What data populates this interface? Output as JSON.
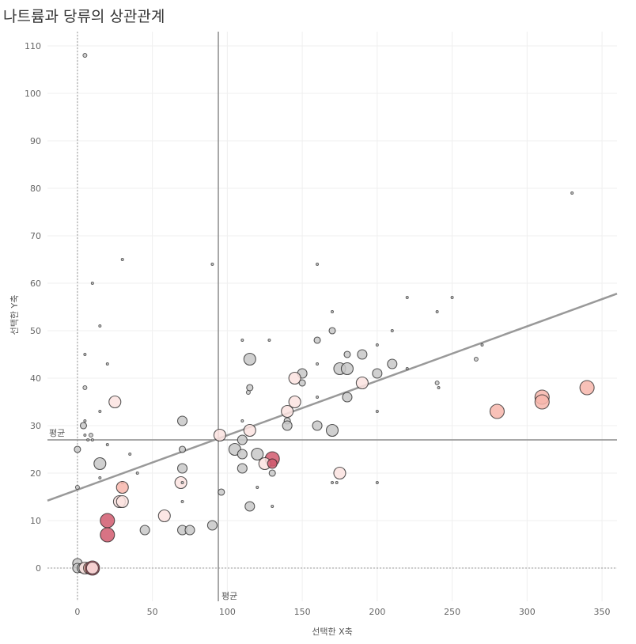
{
  "title": "나트륨과 당류의 상관관계",
  "chart_data": {
    "type": "scatter",
    "title": "나트륨과 당류의 상관관계",
    "xlabel": "선택한 X축",
    "ylabel": "선택한 Y축",
    "xlim": [
      -20,
      360
    ],
    "ylim": [
      -7,
      113
    ],
    "x_ticks": [
      0,
      50,
      100,
      150,
      200,
      250,
      300,
      350
    ],
    "y_ticks": [
      0,
      10,
      20,
      30,
      40,
      50,
      60,
      70,
      80,
      90,
      100,
      110
    ],
    "grid": true,
    "reference_lines": {
      "label": "평균",
      "x_mean": 94,
      "y_mean": 27
    },
    "trendline": {
      "x": [
        -20,
        360
      ],
      "y": [
        14.2,
        57.8
      ],
      "color": "#999999"
    },
    "colors": {
      "gray": "#c8c8c8",
      "pale": "#fbe3e0",
      "salmon": "#f7b6ac",
      "red": "#d15a6e"
    },
    "points": [
      {
        "x": 5,
        "y": 108,
        "s": 1,
        "c": "gray"
      },
      {
        "x": 330,
        "y": 79,
        "s": 0,
        "c": "gray"
      },
      {
        "x": 30,
        "y": 65,
        "s": 0,
        "c": "gray"
      },
      {
        "x": 90,
        "y": 64,
        "s": 0,
        "c": "gray"
      },
      {
        "x": 160,
        "y": 64,
        "s": 0,
        "c": "gray"
      },
      {
        "x": 10,
        "y": 60,
        "s": 0,
        "c": "gray"
      },
      {
        "x": 220,
        "y": 57,
        "s": 0,
        "c": "gray"
      },
      {
        "x": 250,
        "y": 57,
        "s": 0,
        "c": "gray"
      },
      {
        "x": 170,
        "y": 54,
        "s": 0,
        "c": "gray"
      },
      {
        "x": 240,
        "y": 54,
        "s": 0,
        "c": "gray"
      },
      {
        "x": 15,
        "y": 51,
        "s": 0,
        "c": "gray"
      },
      {
        "x": 170,
        "y": 50,
        "s": 2,
        "c": "gray"
      },
      {
        "x": 210,
        "y": 50,
        "s": 0,
        "c": "gray"
      },
      {
        "x": 110,
        "y": 48,
        "s": 0,
        "c": "gray"
      },
      {
        "x": 128,
        "y": 48,
        "s": 0,
        "c": "gray"
      },
      {
        "x": 160,
        "y": 48,
        "s": 2,
        "c": "gray"
      },
      {
        "x": 270,
        "y": 47,
        "s": 0,
        "c": "gray"
      },
      {
        "x": 200,
        "y": 47,
        "s": 0,
        "c": "gray"
      },
      {
        "x": 5,
        "y": 45,
        "s": 0,
        "c": "gray"
      },
      {
        "x": 180,
        "y": 45,
        "s": 2,
        "c": "gray"
      },
      {
        "x": 190,
        "y": 45,
        "s": 3,
        "c": "gray"
      },
      {
        "x": 115,
        "y": 44,
        "s": 4,
        "c": "gray"
      },
      {
        "x": 266,
        "y": 44,
        "s": 1,
        "c": "gray"
      },
      {
        "x": 20,
        "y": 43,
        "s": 0,
        "c": "gray"
      },
      {
        "x": 160,
        "y": 43,
        "s": 0,
        "c": "gray"
      },
      {
        "x": 210,
        "y": 43,
        "s": 3,
        "c": "gray"
      },
      {
        "x": 175,
        "y": 42,
        "s": 4,
        "c": "gray"
      },
      {
        "x": 180,
        "y": 42,
        "s": 4,
        "c": "gray"
      },
      {
        "x": 220,
        "y": 42,
        "s": 0,
        "c": "gray"
      },
      {
        "x": 150,
        "y": 41,
        "s": 3,
        "c": "gray"
      },
      {
        "x": 200,
        "y": 41,
        "s": 3,
        "c": "gray"
      },
      {
        "x": 145,
        "y": 40,
        "s": 4,
        "c": "pale"
      },
      {
        "x": 150,
        "y": 39,
        "s": 2,
        "c": "gray"
      },
      {
        "x": 190,
        "y": 39,
        "s": 4,
        "c": "pale"
      },
      {
        "x": 240,
        "y": 39,
        "s": 1,
        "c": "gray"
      },
      {
        "x": 5,
        "y": 38,
        "s": 1,
        "c": "gray"
      },
      {
        "x": 115,
        "y": 38,
        "s": 2,
        "c": "gray"
      },
      {
        "x": 241,
        "y": 38,
        "s": 0,
        "c": "gray"
      },
      {
        "x": 340,
        "y": 38,
        "s": 5,
        "c": "salmon"
      },
      {
        "x": 114,
        "y": 37,
        "s": 1,
        "c": "gray"
      },
      {
        "x": 160,
        "y": 36,
        "s": 0,
        "c": "gray"
      },
      {
        "x": 180,
        "y": 36,
        "s": 3,
        "c": "gray"
      },
      {
        "x": 310,
        "y": 36,
        "s": 5,
        "c": "salmon"
      },
      {
        "x": 25,
        "y": 35,
        "s": 4,
        "c": "pale"
      },
      {
        "x": 145,
        "y": 35,
        "s": 4,
        "c": "pale"
      },
      {
        "x": 310,
        "y": 35,
        "s": 5,
        "c": "salmon"
      },
      {
        "x": 15,
        "y": 33,
        "s": 0,
        "c": "gray"
      },
      {
        "x": 140,
        "y": 33,
        "s": 4,
        "c": "pale"
      },
      {
        "x": 200,
        "y": 33,
        "s": 0,
        "c": "gray"
      },
      {
        "x": 280,
        "y": 33,
        "s": 5,
        "c": "salmon"
      },
      {
        "x": 5,
        "y": 31,
        "s": 0,
        "c": "gray"
      },
      {
        "x": 70,
        "y": 31,
        "s": 3,
        "c": "gray"
      },
      {
        "x": 110,
        "y": 31,
        "s": 0,
        "c": "gray"
      },
      {
        "x": 140,
        "y": 31,
        "s": 2,
        "c": "gray"
      },
      {
        "x": 4,
        "y": 30,
        "s": 2,
        "c": "gray"
      },
      {
        "x": 140,
        "y": 30,
        "s": 3,
        "c": "gray"
      },
      {
        "x": 160,
        "y": 30,
        "s": 3,
        "c": "gray"
      },
      {
        "x": 115,
        "y": 29,
        "s": 4,
        "c": "pale"
      },
      {
        "x": 170,
        "y": 29,
        "s": 4,
        "c": "gray"
      },
      {
        "x": 5,
        "y": 28,
        "s": 0,
        "c": "gray"
      },
      {
        "x": 9,
        "y": 28,
        "s": 1,
        "c": "gray"
      },
      {
        "x": 95,
        "y": 28,
        "s": 4,
        "c": "pale"
      },
      {
        "x": 7,
        "y": 27,
        "s": 0,
        "c": "gray"
      },
      {
        "x": 10,
        "y": 27,
        "s": 0,
        "c": "gray"
      },
      {
        "x": 110,
        "y": 27,
        "s": 3,
        "c": "gray"
      },
      {
        "x": 20,
        "y": 26,
        "s": 0,
        "c": "gray"
      },
      {
        "x": 0,
        "y": 25,
        "s": 2,
        "c": "gray"
      },
      {
        "x": 70,
        "y": 25,
        "s": 2,
        "c": "gray"
      },
      {
        "x": 105,
        "y": 25,
        "s": 4,
        "c": "gray"
      },
      {
        "x": 35,
        "y": 24,
        "s": 0,
        "c": "gray"
      },
      {
        "x": 110,
        "y": 24,
        "s": 3,
        "c": "gray"
      },
      {
        "x": 120,
        "y": 24,
        "s": 4,
        "c": "gray"
      },
      {
        "x": 130,
        "y": 23,
        "s": 5,
        "c": "red"
      },
      {
        "x": 15,
        "y": 22,
        "s": 4,
        "c": "gray"
      },
      {
        "x": 125,
        "y": 22,
        "s": 4,
        "c": "pale"
      },
      {
        "x": 130,
        "y": 22,
        "s": 3,
        "c": "red"
      },
      {
        "x": 70,
        "y": 21,
        "s": 3,
        "c": "gray"
      },
      {
        "x": 110,
        "y": 21,
        "s": 3,
        "c": "gray"
      },
      {
        "x": 40,
        "y": 20,
        "s": 0,
        "c": "gray"
      },
      {
        "x": 130,
        "y": 20,
        "s": 2,
        "c": "gray"
      },
      {
        "x": 175,
        "y": 20,
        "s": 4,
        "c": "pale"
      },
      {
        "x": 15,
        "y": 19,
        "s": 0,
        "c": "gray"
      },
      {
        "x": 30,
        "y": 18,
        "s": 0,
        "c": "gray"
      },
      {
        "x": 69,
        "y": 18,
        "s": 4,
        "c": "pale"
      },
      {
        "x": 70,
        "y": 18,
        "s": 0,
        "c": "gray"
      },
      {
        "x": 170,
        "y": 18,
        "s": 0,
        "c": "gray"
      },
      {
        "x": 173,
        "y": 18,
        "s": 0,
        "c": "gray"
      },
      {
        "x": 200,
        "y": 18,
        "s": 0,
        "c": "gray"
      },
      {
        "x": 0,
        "y": 17,
        "s": 1,
        "c": "gray"
      },
      {
        "x": 30,
        "y": 17,
        "s": 4,
        "c": "salmon"
      },
      {
        "x": 120,
        "y": 17,
        "s": 0,
        "c": "gray"
      },
      {
        "x": 96,
        "y": 16,
        "s": 2,
        "c": "gray"
      },
      {
        "x": 28,
        "y": 14,
        "s": 4,
        "c": "pale"
      },
      {
        "x": 30,
        "y": 14,
        "s": 4,
        "c": "pale"
      },
      {
        "x": 70,
        "y": 14,
        "s": 0,
        "c": "gray"
      },
      {
        "x": 115,
        "y": 13,
        "s": 3,
        "c": "gray"
      },
      {
        "x": 130,
        "y": 13,
        "s": 0,
        "c": "gray"
      },
      {
        "x": 58,
        "y": 11,
        "s": 4,
        "c": "pale"
      },
      {
        "x": 20,
        "y": 10,
        "s": 5,
        "c": "red"
      },
      {
        "x": 90,
        "y": 9,
        "s": 3,
        "c": "gray"
      },
      {
        "x": 45,
        "y": 8,
        "s": 3,
        "c": "gray"
      },
      {
        "x": 70,
        "y": 8,
        "s": 3,
        "c": "gray"
      },
      {
        "x": 75,
        "y": 8,
        "s": 3,
        "c": "gray"
      },
      {
        "x": 20,
        "y": 7,
        "s": 5,
        "c": "red"
      },
      {
        "x": 0,
        "y": 1,
        "s": 3,
        "c": "gray"
      },
      {
        "x": 0,
        "y": 0,
        "s": 3,
        "c": "gray"
      },
      {
        "x": 3,
        "y": 0,
        "s": 3,
        "c": "gray"
      },
      {
        "x": 5,
        "y": 0,
        "s": 4,
        "c": "pale"
      },
      {
        "x": 8,
        "y": 0,
        "s": 4,
        "c": "salmon"
      },
      {
        "x": 10,
        "y": 0,
        "s": 5,
        "c": "red"
      },
      {
        "x": 10,
        "y": 0,
        "s": 4,
        "c": "pale"
      }
    ]
  }
}
